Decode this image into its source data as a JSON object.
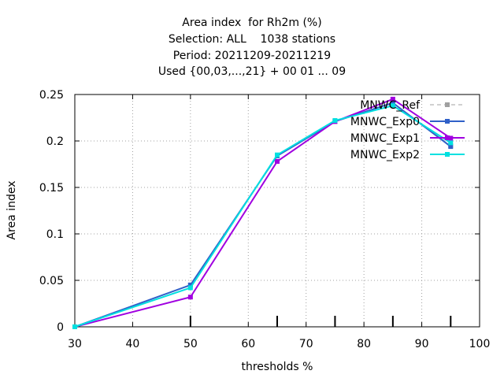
{
  "chart_data": {
    "type": "line",
    "title_lines": [
      "Area index  for Rh2m (%)",
      "Selection: ALL    1038 stations",
      "Period: 20211209-20211219",
      "Used {00,03,...,21} + 00 01 ... 09"
    ],
    "xlabel": "thresholds %",
    "ylabel": "Area index",
    "xlim": [
      30,
      100
    ],
    "ylim": [
      0,
      0.25
    ],
    "xticks": [
      30,
      40,
      50,
      60,
      70,
      80,
      90,
      100
    ],
    "xtick_labels": [
      "30",
      "40",
      "50",
      "60",
      "70",
      "80",
      "90",
      "100"
    ],
    "yticks": [
      0,
      0.05,
      0.1,
      0.15,
      0.2,
      0.25
    ],
    "ytick_labels": [
      "0",
      "0.05",
      "0.1",
      "0.15",
      "0.2",
      "0.25"
    ],
    "bottom_marks": [
      50,
      65,
      75,
      85,
      95
    ],
    "grid": true,
    "legend_position": "top-right",
    "series": [
      {
        "name": "MNWC_Ref",
        "color": "#a0a0a0",
        "dashed": true,
        "x": [
          30,
          50,
          65,
          75,
          85,
          95
        ],
        "y": [
          0.0,
          0.045,
          0.184,
          0.221,
          0.241,
          0.195
        ]
      },
      {
        "name": "MNWC_Exp0",
        "color": "#3060c8",
        "dashed": false,
        "x": [
          30,
          50,
          65,
          75,
          85,
          95
        ],
        "y": [
          0.0,
          0.045,
          0.184,
          0.221,
          0.241,
          0.194
        ]
      },
      {
        "name": "MNWC_Exp1",
        "color": "#a000e0",
        "dashed": false,
        "x": [
          30,
          50,
          65,
          75,
          85,
          95
        ],
        "y": [
          0.0,
          0.032,
          0.178,
          0.221,
          0.245,
          0.203
        ]
      },
      {
        "name": "MNWC_Exp2",
        "color": "#00e0e0",
        "dashed": false,
        "x": [
          30,
          50,
          65,
          75,
          85,
          95
        ],
        "y": [
          0.0,
          0.042,
          0.185,
          0.222,
          0.238,
          0.198
        ]
      }
    ]
  }
}
